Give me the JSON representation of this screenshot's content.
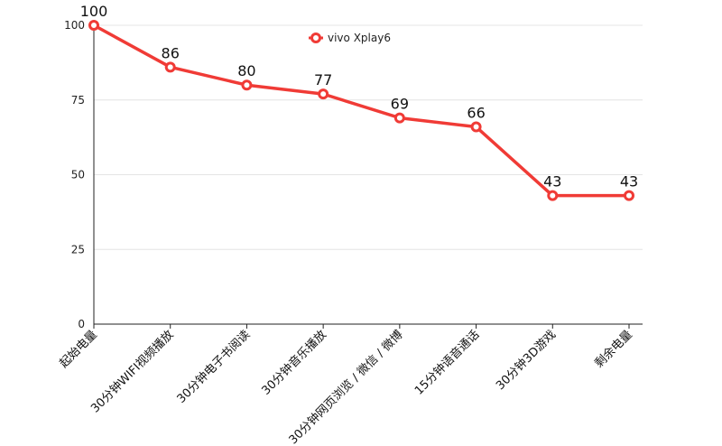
{
  "chart_data": {
    "type": "line",
    "categories": [
      "起始电量",
      "30分钟WIFI视频播放",
      "30分钟电子书阅读",
      "30分钟音乐播放",
      "30分钟网页浏览 / 微信 / 微博",
      "15分钟语音通话",
      "30分钟3D游戏",
      "剩余电量"
    ],
    "series": [
      {
        "name": "vivo Xplay6",
        "values": [
          100,
          86,
          80,
          77,
          69,
          66,
          43,
          43
        ],
        "color": "#f03b36"
      }
    ],
    "data_labels": [
      "100",
      "86",
      "80",
      "77",
      "69",
      "66",
      "43",
      "43"
    ],
    "ylim": [
      0,
      100
    ],
    "yticks": [
      0,
      25,
      50,
      75,
      100
    ],
    "ytick_labels": [
      "0",
      "25",
      "50",
      "75",
      "100"
    ],
    "grid": true,
    "legend": "top-center"
  }
}
